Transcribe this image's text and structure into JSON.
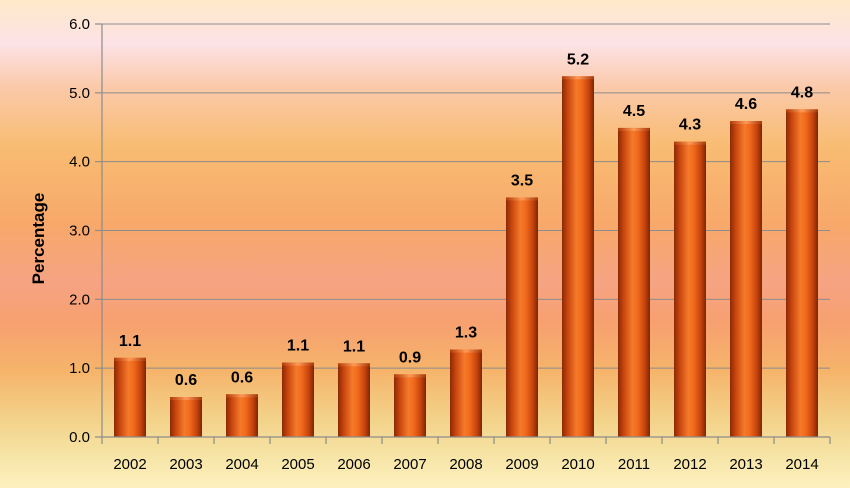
{
  "chart_data": {
    "type": "bar",
    "title": "",
    "xlabel": "",
    "ylabel": "Percentage",
    "categories": [
      "2002",
      "2003",
      "2004",
      "2005",
      "2006",
      "2007",
      "2008",
      "2009",
      "2010",
      "2011",
      "2012",
      "2013",
      "2014"
    ],
    "values": [
      1.1,
      0.6,
      0.6,
      1.1,
      1.1,
      0.9,
      1.3,
      3.5,
      5.2,
      4.5,
      4.3,
      4.6,
      4.8
    ],
    "bar_heights_estimated": [
      1.15,
      0.58,
      0.62,
      1.08,
      1.07,
      0.91,
      1.27,
      3.48,
      5.24,
      4.49,
      4.29,
      4.59,
      4.76
    ],
    "value_labels": [
      "1.1",
      "0.6",
      "0.6",
      "1.1",
      "1.1",
      "0.9",
      "1.3",
      "3.5",
      "5.2",
      "4.5",
      "4.3",
      "4.6",
      "4.8"
    ],
    "y_ticks": [
      "0.0",
      "1.0",
      "2.0",
      "3.0",
      "4.0",
      "5.0",
      "6.0"
    ],
    "ylim": [
      0,
      6
    ],
    "grid": true,
    "legend": "none",
    "bar_color": "#e8621a"
  }
}
